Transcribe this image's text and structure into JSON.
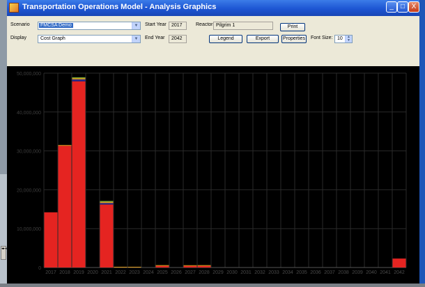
{
  "window": {
    "title": "Transportation Operations Model - Analysis Graphics",
    "min_glyph": "_",
    "max_glyph": "□",
    "close_glyph": "X"
  },
  "controls": {
    "scenario_label": "Scenario",
    "scenario_value": "FMCSA Demo",
    "display_label": "Display",
    "display_value": "Cost Graph",
    "start_year_label": "Start Year",
    "start_year_value": "2017",
    "end_year_label": "End Year",
    "end_year_value": "2042",
    "reactor_label": "Reactor",
    "reactor_value": "Pilgrim 1",
    "print_label": "Print",
    "legend_label": "Legend",
    "export_label": "Export",
    "properties_label": "Properties",
    "font_size_label": "Font Size:",
    "font_size_value": "10"
  },
  "chart_data": {
    "type": "bar",
    "stacked": true,
    "title": "",
    "xlabel": "",
    "ylabel": "",
    "ylim": [
      0,
      50000000
    ],
    "yticks": [
      "0",
      "10,000,000",
      "20,000,000",
      "30,000,000",
      "40,000,000",
      "50,000,000"
    ],
    "grid": true,
    "categories": [
      "2017",
      "2018",
      "2019",
      "2020",
      "2021",
      "2022",
      "2023",
      "2024",
      "2025",
      "2026",
      "2027",
      "2028",
      "2029",
      "2030",
      "2031",
      "2032",
      "2033",
      "2034",
      "2035",
      "2036",
      "2037",
      "2038",
      "2039",
      "2040",
      "2041",
      "2042"
    ],
    "series": [
      {
        "color": "#e52421",
        "values": [
          14200000,
          31300000,
          47900000,
          0,
          16200000,
          0,
          0,
          0,
          400000,
          0,
          400000,
          400000,
          0,
          0,
          0,
          0,
          0,
          0,
          0,
          0,
          0,
          0,
          0,
          0,
          0,
          2300000
        ]
      },
      {
        "color": "#2a2a8a",
        "values": [
          0,
          0,
          500000,
          0,
          400000,
          0,
          0,
          0,
          0,
          0,
          0,
          0,
          0,
          0,
          0,
          0,
          0,
          0,
          0,
          0,
          0,
          0,
          0,
          0,
          0,
          0
        ]
      },
      {
        "color": "#e6a020",
        "values": [
          0,
          200000,
          300000,
          0,
          300000,
          100000,
          150000,
          0,
          200000,
          0,
          150000,
          200000,
          0,
          0,
          0,
          0,
          0,
          0,
          0,
          0,
          0,
          0,
          0,
          0,
          0,
          0
        ]
      },
      {
        "color": "#8ac640",
        "values": [
          0,
          0,
          200000,
          0,
          200000,
          0,
          0,
          0,
          0,
          0,
          0,
          0,
          0,
          0,
          0,
          0,
          0,
          0,
          0,
          0,
          0,
          0,
          0,
          0,
          0,
          0
        ]
      }
    ],
    "grid_color": "#2a2a2a",
    "axis_color": "#555555"
  }
}
